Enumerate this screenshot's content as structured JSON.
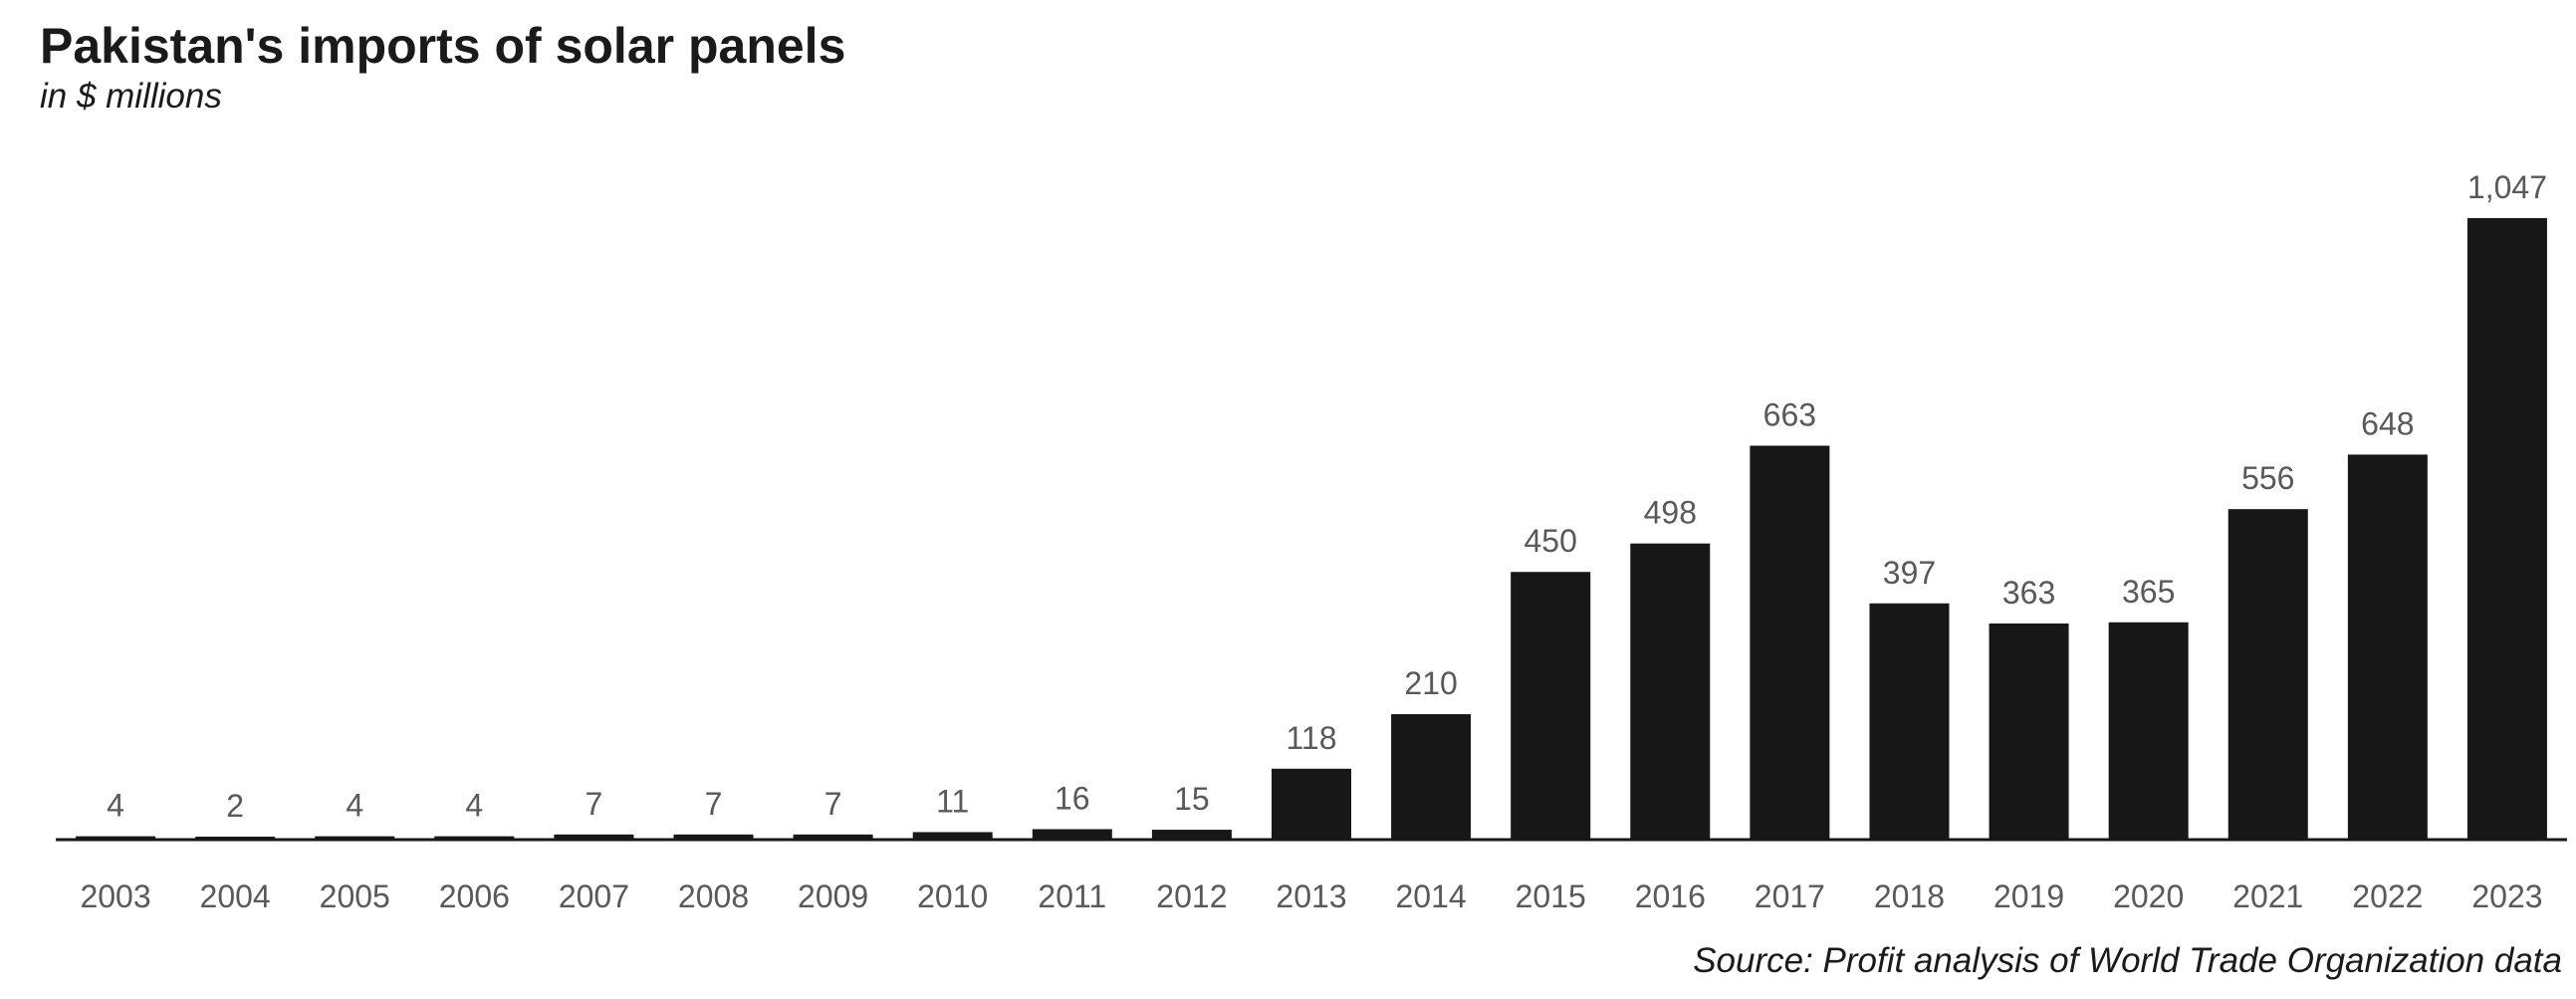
{
  "title": "Pakistan's imports of solar panels",
  "subtitle": "in $ millions",
  "source": "Source: Profit analysis of World Trade Organization data",
  "chart_data": {
    "type": "bar",
    "title": "Pakistan's imports of solar panels",
    "subtitle": "in $ millions",
    "xlabel": "",
    "ylabel": "",
    "categories": [
      "2003",
      "2004",
      "2005",
      "2006",
      "2007",
      "2008",
      "2009",
      "2010",
      "2011",
      "2012",
      "2013",
      "2014",
      "2015",
      "2016",
      "2017",
      "2018",
      "2019",
      "2020",
      "2021",
      "2022",
      "2023"
    ],
    "values": [
      4,
      2,
      4,
      4,
      7,
      7,
      7,
      11,
      16,
      15,
      118,
      210,
      450,
      498,
      663,
      397,
      363,
      365,
      556,
      648,
      1047
    ],
    "data_labels": [
      "4",
      "2",
      "4",
      "4",
      "7",
      "7",
      "7",
      "11",
      "16",
      "15",
      "118",
      "210",
      "450",
      "498",
      "663",
      "397",
      "363",
      "365",
      "556",
      "648",
      "1,047"
    ],
    "ylim": [
      0,
      1047
    ],
    "y_axis_visible": false,
    "grid": false,
    "legend": "none",
    "colors": {
      "bar": "#171717",
      "data_label": "#595959",
      "tick_label": "#595959",
      "baseline": "#171717",
      "text": "#1a1a1a"
    }
  }
}
